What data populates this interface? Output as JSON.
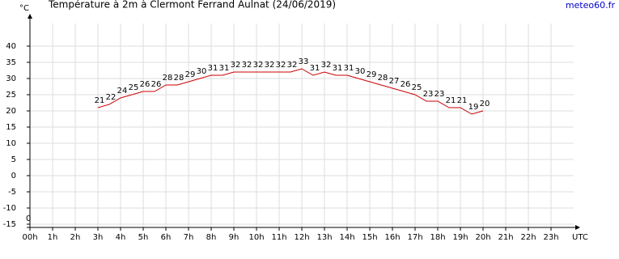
{
  "chart_data": {
    "type": "line",
    "title": "Température à 2m à Clermont Ferrand Aulnat (24/06/2019)",
    "y_label": "°C",
    "x_label": "UTC",
    "source": "meteo60.fr",
    "corner_label": "0",
    "x": [
      3,
      3.5,
      4,
      4.5,
      5,
      5.5,
      6,
      6.5,
      7,
      7.5,
      8,
      8.5,
      9,
      9.5,
      10,
      10.5,
      11,
      11.5,
      12,
      12.5,
      13,
      13.5,
      14,
      14.5,
      15,
      15.5,
      16,
      16.5,
      17,
      17.5,
      18,
      18.5,
      19,
      19.5,
      20
    ],
    "series": [
      {
        "name": "Température",
        "color": "#cc0000",
        "values": [
          21,
          22,
          24,
          25,
          26,
          26,
          28,
          28,
          29,
          30,
          31,
          31,
          32,
          32,
          32,
          32,
          32,
          32,
          33,
          31,
          32,
          31,
          31,
          30,
          29,
          28,
          27,
          26,
          25,
          23,
          23,
          21,
          21,
          19,
          20
        ]
      }
    ],
    "xlim": [
      0,
      24
    ],
    "ylim": [
      -16,
      47
    ],
    "xticks": [
      {
        "value": 0,
        "label": "00h"
      },
      {
        "value": 1,
        "label": "1h"
      },
      {
        "value": 2,
        "label": "2h"
      },
      {
        "value": 3,
        "label": "3h"
      },
      {
        "value": 4,
        "label": "4h"
      },
      {
        "value": 5,
        "label": "5h"
      },
      {
        "value": 6,
        "label": "6h"
      },
      {
        "value": 7,
        "label": "7h"
      },
      {
        "value": 8,
        "label": "8h"
      },
      {
        "value": 9,
        "label": "9h"
      },
      {
        "value": 10,
        "label": "10h"
      },
      {
        "value": 11,
        "label": "11h"
      },
      {
        "value": 12,
        "label": "12h"
      },
      {
        "value": 13,
        "label": "13h"
      },
      {
        "value": 14,
        "label": "14h"
      },
      {
        "value": 15,
        "label": "15h"
      },
      {
        "value": 16,
        "label": "16h"
      },
      {
        "value": 17,
        "label": "17h"
      },
      {
        "value": 18,
        "label": "18h"
      },
      {
        "value": 19,
        "label": "19h"
      },
      {
        "value": 20,
        "label": "20h"
      },
      {
        "value": 21,
        "label": "21h"
      },
      {
        "value": 22,
        "label": "22h"
      },
      {
        "value": 23,
        "label": "23h"
      }
    ],
    "yticks": [
      -15,
      -10,
      -5,
      0,
      5,
      10,
      15,
      20,
      25,
      30,
      35,
      40
    ],
    "grid": true
  }
}
